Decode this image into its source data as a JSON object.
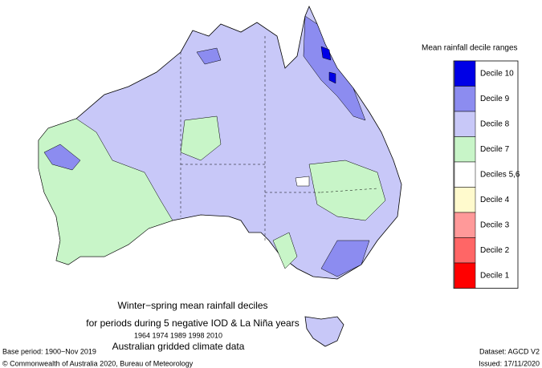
{
  "legend": {
    "title": "Mean rainfall decile ranges",
    "entries": [
      {
        "label": "Decile 10",
        "color": "#0000e6"
      },
      {
        "label": "Decile 9",
        "color": "#8c8cf0"
      },
      {
        "label": "Decile 8",
        "color": "#c8c8f8"
      },
      {
        "label": "Decile 7",
        "color": "#c8f5c8"
      },
      {
        "label": "Deciles 5,6",
        "color": "#ffffff"
      },
      {
        "label": "Decile 4",
        "color": "#fffacd"
      },
      {
        "label": "Decile 3",
        "color": "#ff9999"
      },
      {
        "label": "Decile 2",
        "color": "#ff6666"
      },
      {
        "label": "Decile 1",
        "color": "#ff0000"
      }
    ]
  },
  "caption": {
    "line1": "Winter−spring mean rainfall deciles",
    "line2": "for periods during 5 negative IOD & La Niña years",
    "years": "1964 1974 1989 1998 2010",
    "line3": "Australian gridded climate data"
  },
  "footer": {
    "base_period": "Base period: 1900−Nov 2019",
    "copyright": "© Commonwealth of Australia 2020, Bureau of Meteorology",
    "dataset": "Dataset: AGCD V2",
    "issued": "Issued: 17/11/2020"
  }
}
